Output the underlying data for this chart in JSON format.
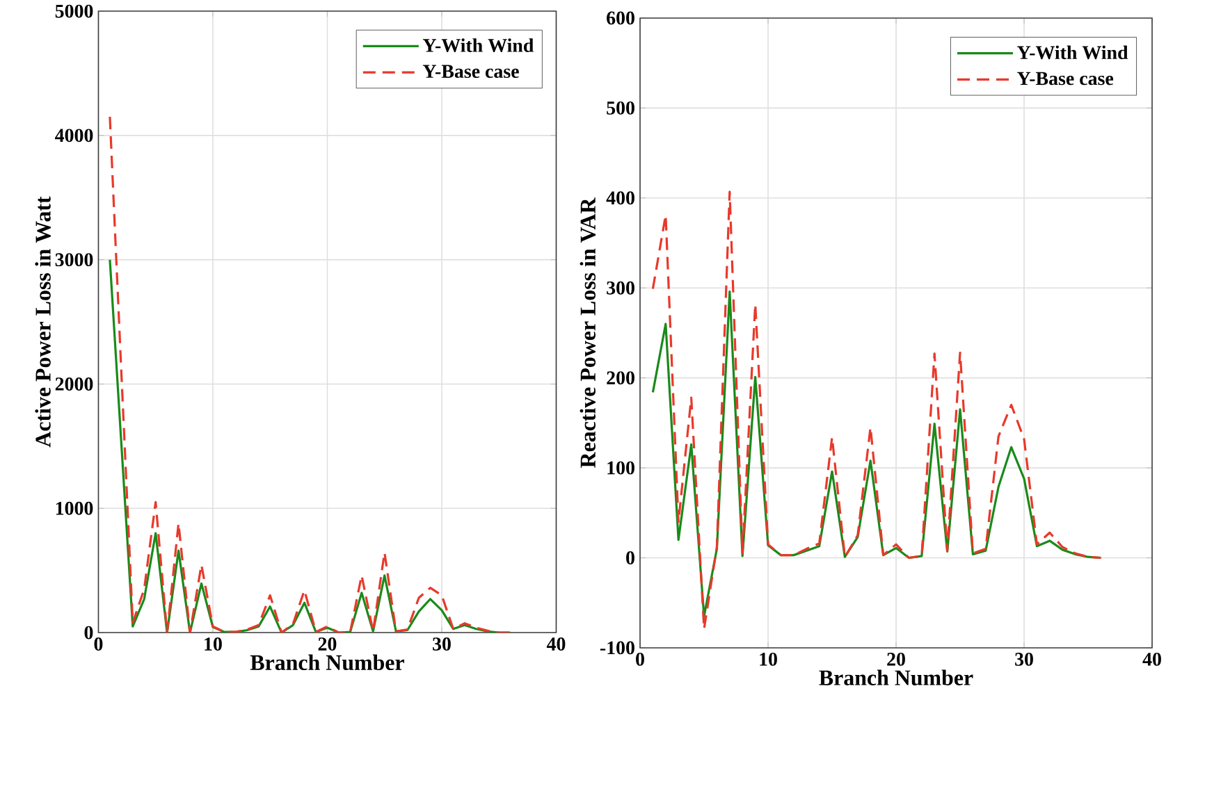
{
  "chart_data": [
    {
      "type": "line",
      "xlabel": "Branch Number",
      "ylabel": "Active Power Loss in Watt",
      "xlim": [
        0,
        40
      ],
      "xticks": [
        0,
        10,
        20,
        30,
        40
      ],
      "ylim": [
        0,
        5000
      ],
      "yticks": [
        0,
        1000,
        2000,
        3000,
        4000,
        5000
      ],
      "grid": true,
      "legend": "top right",
      "x": [
        1,
        2,
        3,
        4,
        5,
        6,
        7,
        8,
        9,
        10,
        11,
        12,
        13,
        14,
        15,
        16,
        17,
        18,
        19,
        20,
        21,
        22,
        23,
        24,
        25,
        26,
        27,
        28,
        29,
        30,
        31,
        32,
        33,
        34,
        35,
        36
      ],
      "series": [
        {
          "name": "Y-With Wind",
          "color": "#1a8a1a",
          "line_style": "solid",
          "values": [
            3000,
            1525,
            50,
            270,
            800,
            0,
            660,
            0,
            395,
            45,
            5,
            5,
            20,
            50,
            210,
            0,
            60,
            240,
            5,
            40,
            0,
            5,
            320,
            10,
            460,
            10,
            20,
            170,
            270,
            180,
            30,
            60,
            30,
            10,
            0,
            0
          ]
        },
        {
          "name": "Y-Base case",
          "color": "#e8392b",
          "line_style": "dashed",
          "values": [
            4150,
            2100,
            80,
            350,
            1050,
            0,
            880,
            0,
            545,
            50,
            5,
            5,
            25,
            60,
            300,
            0,
            70,
            340,
            5,
            50,
            0,
            5,
            460,
            10,
            645,
            10,
            25,
            280,
            360,
            300,
            30,
            75,
            40,
            15,
            0,
            0
          ]
        }
      ]
    },
    {
      "type": "line",
      "xlabel": "Branch Number",
      "ylabel": "Reactive Power Loss in VAR",
      "xlim": [
        0,
        40
      ],
      "xticks": [
        0,
        10,
        20,
        30,
        40
      ],
      "ylim": [
        -100,
        600
      ],
      "yticks": [
        -100,
        0,
        100,
        200,
        300,
        400,
        500,
        600
      ],
      "grid": true,
      "legend": "top right",
      "x": [
        1,
        2,
        3,
        4,
        5,
        6,
        7,
        8,
        9,
        10,
        11,
        12,
        13,
        14,
        15,
        16,
        17,
        18,
        19,
        20,
        21,
        22,
        23,
        24,
        25,
        26,
        27,
        28,
        29,
        30,
        31,
        32,
        33,
        34,
        35,
        36
      ],
      "series": [
        {
          "name": "Y-With Wind",
          "color": "#1a8a1a",
          "line_style": "solid",
          "values": [
            184,
            260,
            20,
            126,
            -65,
            10,
            296,
            2,
            201,
            14,
            3,
            3,
            8,
            13,
            96,
            1,
            23,
            108,
            3,
            11,
            0,
            2,
            149,
            7,
            165,
            4,
            8,
            79,
            123,
            88,
            13,
            19,
            9,
            4,
            1,
            0
          ]
        },
        {
          "name": "Y-Base case",
          "color": "#e8392b",
          "line_style": "dashed",
          "values": [
            299,
            381,
            40,
            178,
            -79,
            12,
            407,
            5,
            282,
            15,
            3,
            3,
            10,
            16,
            134,
            1,
            25,
            145,
            3,
            15,
            0,
            2,
            227,
            8,
            228,
            5,
            10,
            135,
            170,
            132,
            15,
            28,
            12,
            5,
            1,
            0
          ]
        }
      ]
    }
  ]
}
